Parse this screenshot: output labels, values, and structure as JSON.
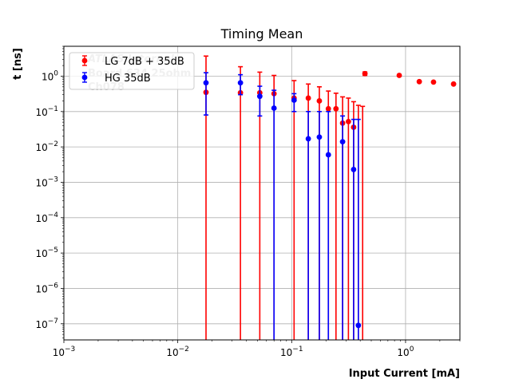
{
  "chart_data": {
    "type": "scatter",
    "title": "Timing Mean",
    "xlabel": "Input Current [mA]",
    "ylabel": "t [ns]",
    "xscale": "log",
    "yscale": "log",
    "xlim": [
      0.001,
      3.0
    ],
    "ylim": [
      3.5e-08,
      7.0
    ],
    "grid": true,
    "legend_position": "top-left",
    "x_ticks": [
      {
        "base": "10",
        "exp": "−3"
      },
      {
        "base": "10",
        "exp": "−2"
      },
      {
        "base": "10",
        "exp": "−1"
      },
      {
        "base": "10",
        "exp": "0"
      }
    ],
    "y_ticks": [
      {
        "base": "10",
        "exp": "−7"
      },
      {
        "base": "10",
        "exp": "−6"
      },
      {
        "base": "10",
        "exp": "−5"
      },
      {
        "base": "10",
        "exp": "−4"
      },
      {
        "base": "10",
        "exp": "−3"
      },
      {
        "base": "10",
        "exp": "−2"
      },
      {
        "base": "10",
        "exp": "−1"
      },
      {
        "base": "10",
        "exp": "0"
      }
    ],
    "annotation_lines": [
      "ATLAS Internal",
      "Board 634 25ohm",
      "Ch078"
    ],
    "series": [
      {
        "name": "LG 7dB + 35dB",
        "color": "#ff0000",
        "points": [
          {
            "x": 0.0177,
            "y": 0.35,
            "yerr_hi": 3.7
          },
          {
            "x": 0.0355,
            "y": 0.34,
            "yerr_hi": 1.85
          },
          {
            "x": 0.0525,
            "y": 0.34,
            "yerr_hi": 1.3
          },
          {
            "x": 0.07,
            "y": 0.32,
            "yerr_hi": 1.05
          },
          {
            "x": 0.105,
            "y": 0.24,
            "yerr_hi": 0.75
          },
          {
            "x": 0.14,
            "y": 0.24,
            "yerr_hi": 0.6
          },
          {
            "x": 0.175,
            "y": 0.2,
            "yerr_hi": 0.5
          },
          {
            "x": 0.21,
            "y": 0.12,
            "yerr_hi": 0.38
          },
          {
            "x": 0.245,
            "y": 0.12,
            "yerr_hi": 0.33
          },
          {
            "x": 0.28,
            "y": 0.047,
            "yerr_hi": 0.26
          },
          {
            "x": 0.315,
            "y": 0.052,
            "yerr_hi": 0.24
          },
          {
            "x": 0.35,
            "y": 0.036,
            "yerr_hi": 0.19
          },
          {
            "x": 0.385,
            "y": null,
            "yerr_hi": 0.15
          },
          {
            "x": 0.42,
            "y": null,
            "yerr_hi": 0.14
          },
          {
            "x": 0.44,
            "y": 1.18,
            "yerr_lo": 1.05,
            "yerr_hi": 1.32
          },
          {
            "x": 0.88,
            "y": 1.05
          },
          {
            "x": 1.32,
            "y": 0.7
          },
          {
            "x": 1.76,
            "y": 0.68
          },
          {
            "x": 2.64,
            "y": 0.6
          }
        ]
      },
      {
        "name": "HG 35dB",
        "color": "#0000ff",
        "points": [
          {
            "x": 0.0177,
            "y": 0.65,
            "yerr_lo": 0.08,
            "yerr_hi": 1.25
          },
          {
            "x": 0.0355,
            "y": 0.65,
            "yerr_lo": 0.3,
            "yerr_hi": 1.1
          },
          {
            "x": 0.0525,
            "y": 0.27,
            "yerr_lo": 0.075,
            "yerr_hi": 0.52
          },
          {
            "x": 0.07,
            "y": 0.125,
            "yerr_hi": 0.4
          },
          {
            "x": 0.105,
            "y": 0.21,
            "yerr_lo": 0.1,
            "yerr_hi": 0.32
          },
          {
            "x": 0.14,
            "y": 0.017,
            "yerr_hi": 0.1
          },
          {
            "x": 0.175,
            "y": 0.019,
            "yerr_hi": 0.1
          },
          {
            "x": 0.21,
            "y": 0.006,
            "yerr_hi": 0.1
          },
          {
            "x": 0.28,
            "y": 0.014,
            "yerr_hi": 0.075
          },
          {
            "x": 0.35,
            "y": 0.0023,
            "yerr_hi": 0.06
          },
          {
            "x": 0.385,
            "y": 9e-08,
            "yerr_hi": 0.06
          }
        ]
      }
    ]
  }
}
